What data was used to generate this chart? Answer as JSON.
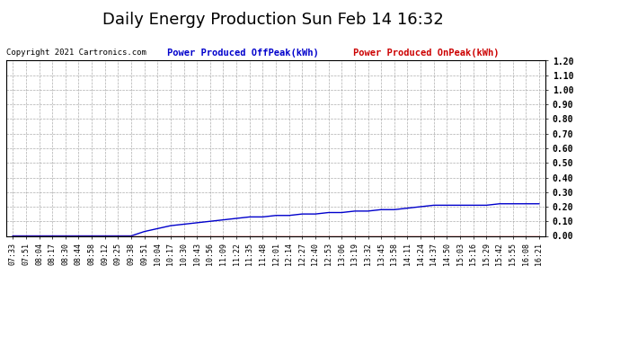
{
  "title": "Daily Energy Production Sun Feb 14 16:32",
  "copyright": "Copyright 2021 Cartronics.com",
  "legend_offpeak": "Power Produced OffPeak(kWh)",
  "legend_onpeak": "Power Produced OnPeak(kWh)",
  "background_color": "#ffffff",
  "grid_color": "#999999",
  "line_color_offpeak": "#0000cc",
  "line_color_onpeak": "#cc0000",
  "legend_offpeak_color": "#0000cc",
  "legend_onpeak_color": "#cc0000",
  "title_color": "#000000",
  "ylim": [
    0.0,
    1.2
  ],
  "yticks": [
    0.0,
    0.1,
    0.2,
    0.3,
    0.4,
    0.5,
    0.6,
    0.7,
    0.8,
    0.9,
    1.0,
    1.1,
    1.2
  ],
  "x_labels": [
    "07:33",
    "07:51",
    "08:04",
    "08:17",
    "08:30",
    "08:44",
    "08:58",
    "09:12",
    "09:25",
    "09:38",
    "09:51",
    "10:04",
    "10:17",
    "10:30",
    "10:43",
    "10:56",
    "11:09",
    "11:22",
    "11:35",
    "11:48",
    "12:01",
    "12:14",
    "12:27",
    "12:40",
    "12:53",
    "13:06",
    "13:19",
    "13:32",
    "13:45",
    "13:58",
    "14:11",
    "14:24",
    "14:37",
    "14:50",
    "15:03",
    "15:16",
    "15:29",
    "15:42",
    "15:55",
    "16:08",
    "16:21"
  ],
  "offpeak_values": [
    0.0,
    0.0,
    0.0,
    0.0,
    0.0,
    0.0,
    0.0,
    0.0,
    0.0,
    0.0,
    0.03,
    0.05,
    0.07,
    0.08,
    0.09,
    0.1,
    0.11,
    0.12,
    0.13,
    0.13,
    0.14,
    0.14,
    0.15,
    0.15,
    0.16,
    0.16,
    0.17,
    0.17,
    0.18,
    0.18,
    0.19,
    0.2,
    0.21,
    0.21,
    0.21,
    0.21,
    0.21,
    0.22,
    0.22,
    0.22,
    0.22
  ],
  "onpeak_values": [
    0.0,
    0.0,
    0.0,
    0.0,
    0.0,
    0.0,
    0.0,
    0.0,
    0.0,
    0.0,
    0.0,
    0.0,
    0.0,
    0.0,
    0.0,
    0.0,
    0.0,
    0.0,
    0.0,
    0.0,
    0.0,
    0.0,
    0.0,
    0.0,
    0.0,
    0.0,
    0.0,
    0.0,
    0.0,
    0.0,
    0.0,
    0.0,
    0.0,
    0.0,
    0.0,
    0.0,
    0.0,
    0.0,
    0.0,
    0.0,
    0.0
  ],
  "title_fontsize": 13,
  "copyright_fontsize": 6.5,
  "legend_fontsize": 7.5,
  "tick_fontsize": 6,
  "ytick_fontsize": 7
}
